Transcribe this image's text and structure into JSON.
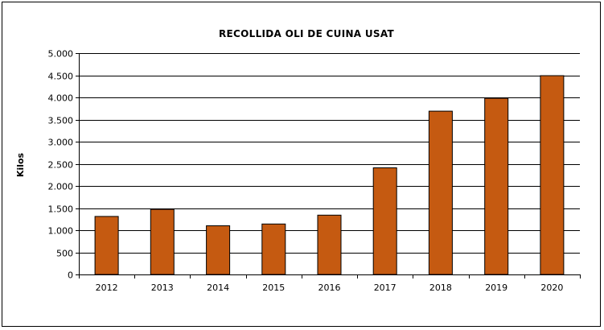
{
  "chart_data": {
    "type": "bar",
    "title": "RECOLLIDA  OLI DE CUINA  USAT",
    "xlabel": "",
    "ylabel": "Kilos",
    "categories": [
      "2012",
      "2013",
      "2014",
      "2015",
      "2016",
      "2017",
      "2018",
      "2019",
      "2020"
    ],
    "values": [
      1310,
      1470,
      1100,
      1140,
      1340,
      2410,
      3690,
      3980,
      4490
    ],
    "ylim": [
      0,
      5000
    ],
    "yticks": [
      0,
      500,
      1000,
      1500,
      2000,
      2500,
      3000,
      3500,
      4000,
      4500,
      5000
    ],
    "ytick_labels": [
      "0",
      "500",
      "1.000",
      "1.500",
      "2.000",
      "2.500",
      "3.000",
      "3.500",
      "4.000",
      "4.500",
      "5.000"
    ],
    "grid": true,
    "legend": "none",
    "bar_color": "#c55a11"
  }
}
